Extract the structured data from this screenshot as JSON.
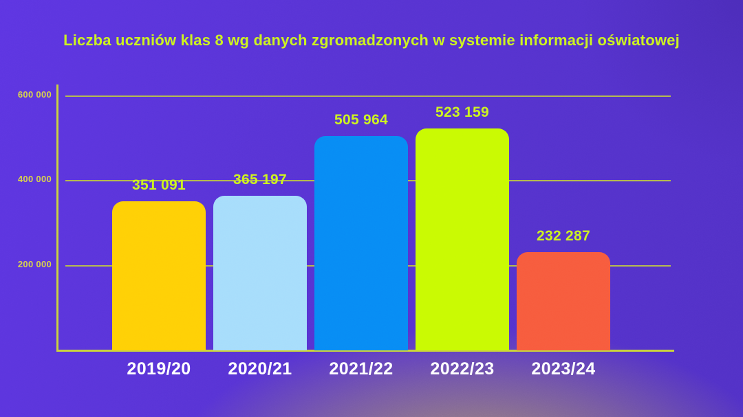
{
  "title": "Liczba uczniów klas 8 wg danych zgromadzonych w systemie informacji oświatowej",
  "chart_data": {
    "type": "bar",
    "title": "Liczba uczniów klas 8 wg danych zgromadzonych w systemie informacji oświatowej",
    "categories": [
      "2019/20",
      "2020/21",
      "2021/22",
      "2022/23",
      "2023/24"
    ],
    "values": [
      351091,
      365197,
      505964,
      523159,
      232287
    ],
    "value_labels": [
      "351 091",
      "365 197",
      "505 964",
      "523 159",
      "232 287"
    ],
    "bar_colors": [
      "#ffd005",
      "#a6ddfb",
      "#078bf4",
      "#c9fa02",
      "#f75b3d"
    ],
    "xlabel": "",
    "ylabel": "",
    "ylim": [
      0,
      600000
    ],
    "yticks": [
      200000,
      400000,
      600000
    ],
    "ytick_labels": [
      "200 000",
      "400 000",
      "600 000"
    ],
    "grid": true,
    "legend": false
  },
  "colors": {
    "background": "#5633cf",
    "glow": "#ac9868",
    "title_text": "#ccf31f",
    "value_text": "#ccf31f",
    "axis": "#c9d23c",
    "gridline": "#b4b94e",
    "tick_text": "#d8d24a",
    "category_text": "#ffffff"
  }
}
